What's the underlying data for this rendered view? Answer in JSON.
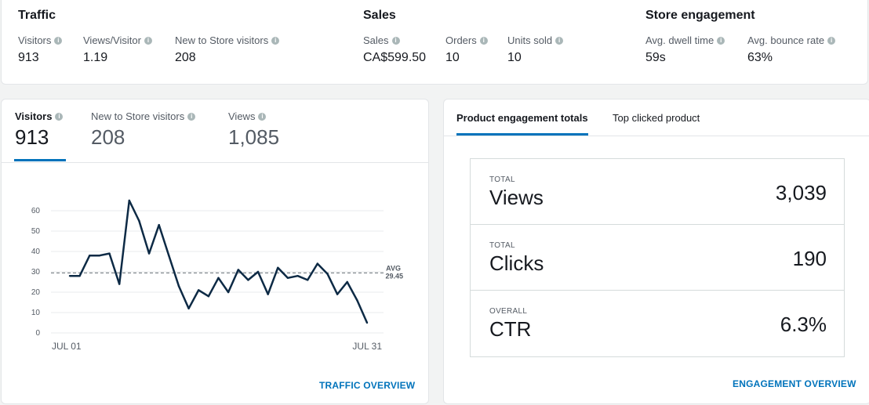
{
  "summary": {
    "traffic": {
      "title": "Traffic",
      "metrics": [
        {
          "label": "Visitors",
          "value": "913"
        },
        {
          "label": "Views/Visitor",
          "value": "1.19"
        },
        {
          "label": "New to Store visitors",
          "value": "208"
        }
      ]
    },
    "sales": {
      "title": "Sales",
      "metrics": [
        {
          "label": "Sales",
          "value": "CA$599.50"
        },
        {
          "label": "Orders",
          "value": "10"
        },
        {
          "label": "Units sold",
          "value": "10"
        }
      ]
    },
    "engagement": {
      "title": "Store engagement",
      "metrics": [
        {
          "label": "Avg. dwell time",
          "value": "59s"
        },
        {
          "label": "Avg. bounce rate",
          "value": "63%"
        }
      ]
    },
    "info_glyph": "i"
  },
  "traffic_panel": {
    "tabs": [
      {
        "label": "Visitors",
        "value": "913",
        "active": true
      },
      {
        "label": "New to Store visitors",
        "value": "208",
        "active": false
      },
      {
        "label": "Views",
        "value": "1,085",
        "active": false
      }
    ],
    "link": "TRAFFIC OVERVIEW"
  },
  "engagement_panel": {
    "tabs": [
      {
        "label": "Product engagement totals",
        "active": true
      },
      {
        "label": "Top clicked product",
        "active": false
      }
    ],
    "totals": [
      {
        "caption": "TOTAL",
        "name": "Views",
        "value": "3,039"
      },
      {
        "caption": "TOTAL",
        "name": "Clicks",
        "value": "190"
      },
      {
        "caption": "OVERALL",
        "name": "CTR",
        "value": "6.3%"
      }
    ],
    "link": "ENGAGEMENT OVERVIEW"
  },
  "chart_data": {
    "type": "line",
    "x_start_label": "JUL 01",
    "x_end_label": "JUL 31",
    "values": [
      28,
      28,
      38,
      38,
      39,
      24,
      65,
      55,
      39,
      53,
      38,
      23,
      12,
      21,
      18,
      27,
      20,
      31,
      26,
      30,
      19,
      32,
      27,
      28,
      26,
      34,
      29,
      19,
      25,
      16,
      5
    ],
    "ylim": [
      0,
      60
    ],
    "yticks": [
      0,
      10,
      20,
      30,
      40,
      50,
      60
    ],
    "avg": {
      "label": "AVG",
      "value": 29.45
    },
    "grid": true,
    "line_color": "#0d2a45"
  }
}
